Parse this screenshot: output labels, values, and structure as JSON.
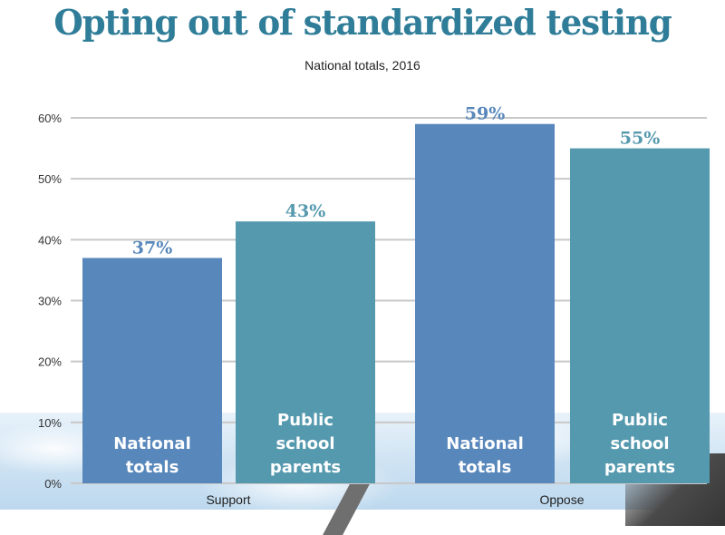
{
  "colors": {
    "title": "#2f7d98",
    "national": "#5887bb",
    "parents": "#5599ae",
    "grid": "#c8c8c8"
  },
  "chart_data": {
    "type": "bar",
    "title": "Opting out of standardized testing",
    "subtitle": "National totals, 2016",
    "xlabel": "",
    "ylabel": "",
    "categories": [
      "Support",
      "Oppose"
    ],
    "series": [
      {
        "name": "National totals",
        "label_lines": [
          "National",
          "totals"
        ],
        "values": [
          37,
          59
        ],
        "color": "#5887bb"
      },
      {
        "name": "Public school parents",
        "label_lines": [
          "Public",
          "school",
          "parents"
        ],
        "values": [
          43,
          55
        ],
        "color": "#5599ae"
      }
    ],
    "value_labels": [
      [
        "37%",
        "59%"
      ],
      [
        "43%",
        "55%"
      ]
    ],
    "ylim": [
      0,
      60
    ],
    "yticks": [
      0,
      10,
      20,
      30,
      40,
      50,
      60
    ],
    "ytick_labels": [
      "0%",
      "10%",
      "20%",
      "30%",
      "40%",
      "50%",
      "60%"
    ],
    "grid": true,
    "legend": "none (labels inside bars)"
  }
}
